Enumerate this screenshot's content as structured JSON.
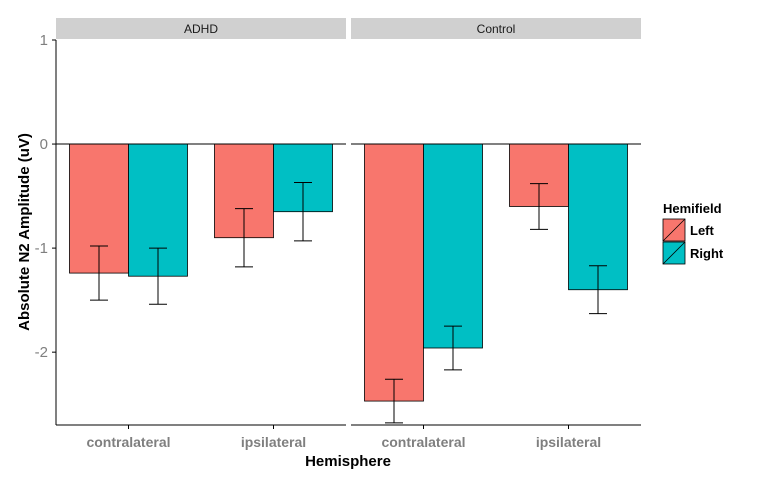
{
  "chart_data": {
    "type": "bar",
    "xlabel": "Hemisphere",
    "ylabel": "Absolute N2 Amplitude (uV)",
    "ylim": [
      -2.7,
      1.0
    ],
    "yticks": [
      1,
      0,
      -1,
      -2
    ],
    "ytick_labels": [
      "1",
      "0",
      "-1",
      "-2"
    ],
    "categories": [
      "contralateral",
      "ipsilateral"
    ],
    "legend": {
      "title": "Hemifield",
      "placement": "right",
      "entries": [
        "Left",
        "Right"
      ]
    },
    "colors": {
      "Left": "#F8766D",
      "Right": "#00BFC4",
      "strip": "#D0D0D0"
    },
    "grid": false,
    "panels": [
      {
        "name": "ADHD",
        "series": [
          {
            "name": "Left",
            "values": [
              -1.24,
              -0.9
            ],
            "error": [
              0.26,
              0.28
            ]
          },
          {
            "name": "Right",
            "values": [
              -1.27,
              -0.65
            ],
            "error": [
              0.27,
              0.28
            ]
          }
        ]
      },
      {
        "name": "Control",
        "series": [
          {
            "name": "Left",
            "values": [
              -2.47,
              -0.6
            ],
            "error": [
              0.21,
              0.22
            ]
          },
          {
            "name": "Right",
            "values": [
              -1.96,
              -1.4
            ],
            "error": [
              0.21,
              0.23
            ]
          }
        ]
      }
    ]
  }
}
